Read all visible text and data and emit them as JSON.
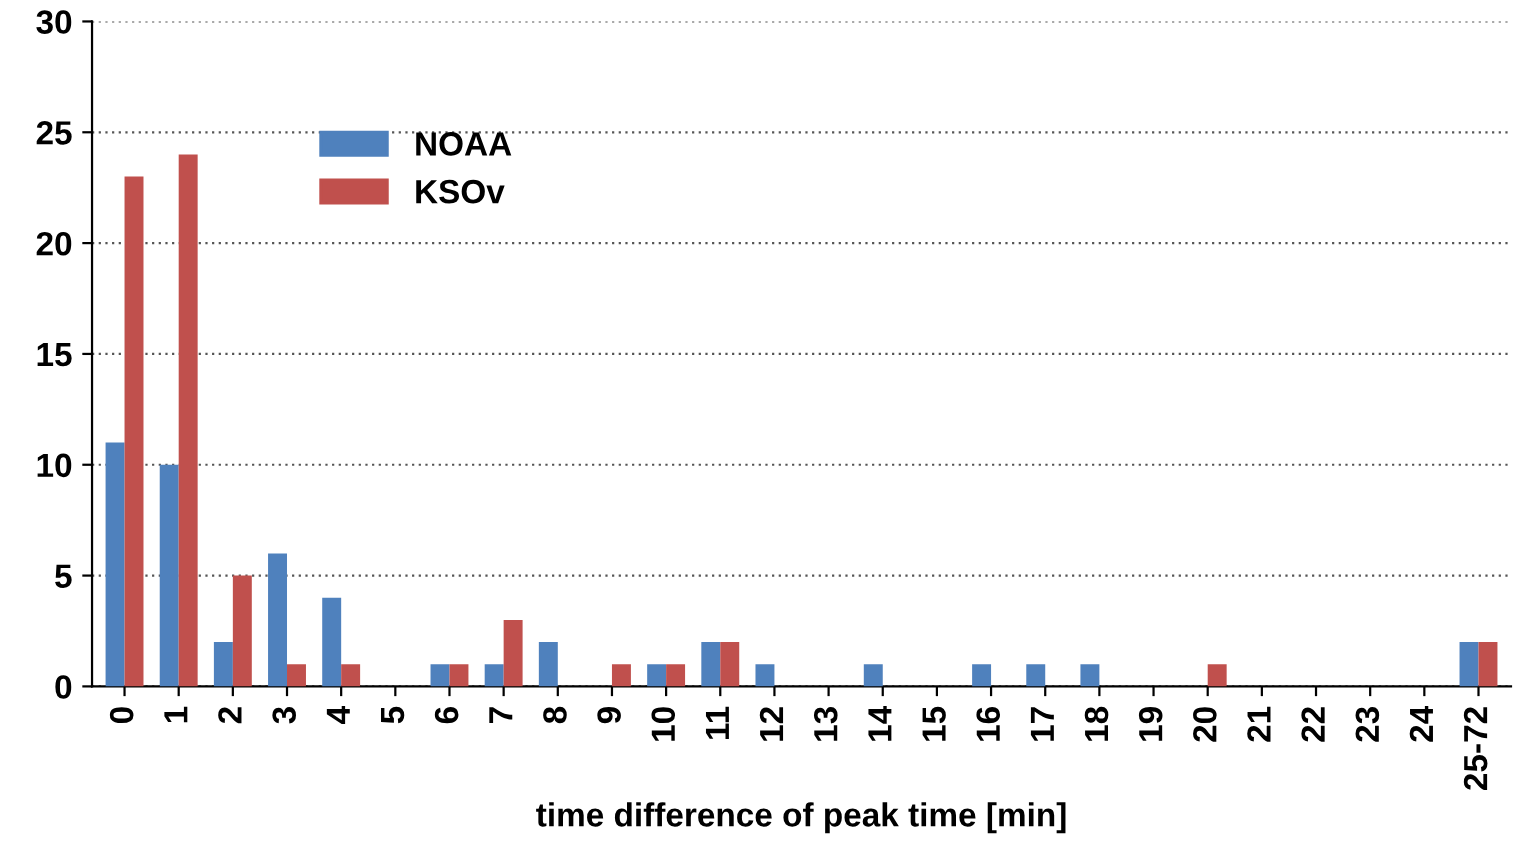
{
  "chart_data": {
    "type": "bar",
    "xlabel": "time difference of peak time [min]",
    "categories": [
      "0",
      "1",
      "2",
      "3",
      "4",
      "5",
      "6",
      "7",
      "8",
      "9",
      "10",
      "11",
      "12",
      "13",
      "14",
      "15",
      "16",
      "17",
      "18",
      "19",
      "20",
      "21",
      "22",
      "23",
      "24",
      "25-72"
    ],
    "series": [
      {
        "name": "NOAA",
        "color": "#4f81bd",
        "values": [
          11,
          10,
          2,
          6,
          4,
          0,
          1,
          1,
          2,
          0,
          1,
          2,
          1,
          0,
          1,
          0,
          1,
          1,
          1,
          0,
          0,
          0,
          0,
          0,
          0,
          2
        ]
      },
      {
        "name": "KSOv",
        "color": "#c0504d",
        "values": [
          23,
          24,
          5,
          1,
          1,
          0,
          1,
          3,
          0,
          1,
          1,
          2,
          0,
          0,
          0,
          0,
          0,
          0,
          0,
          0,
          1,
          0,
          0,
          0,
          0,
          2
        ]
      }
    ],
    "ylim": [
      0,
      30
    ],
    "yticks": [
      0,
      5,
      10,
      15,
      20,
      25,
      30
    ],
    "grid": "y",
    "legend": "top left"
  }
}
